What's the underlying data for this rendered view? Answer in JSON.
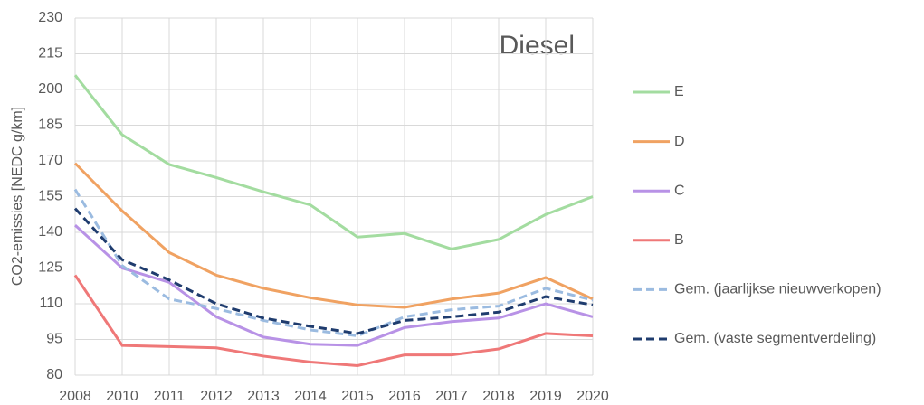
{
  "chart_data": {
    "type": "line",
    "title": "Diesel",
    "y_label": "CO2-emissies [NEDC g/km]",
    "categories": [
      "2008",
      "2010",
      "2011",
      "2012",
      "2013",
      "2014",
      "2015",
      "2016",
      "2017",
      "2018",
      "2019",
      "2020"
    ],
    "ylim": [
      80,
      230
    ],
    "yticks": [
      80,
      95,
      110,
      125,
      140,
      155,
      170,
      185,
      200,
      215,
      230
    ],
    "grid": true,
    "legend": "right",
    "series": [
      {
        "name": "E",
        "color": "#a3dca0",
        "dashed": false,
        "values": [
          206,
          181,
          168.5,
          163,
          157,
          151.5,
          138,
          139.5,
          133,
          137,
          147.5,
          155
        ]
      },
      {
        "name": "D",
        "color": "#f0a262",
        "dashed": false,
        "values": [
          169,
          149,
          131.5,
          122,
          116.5,
          112.5,
          109.5,
          108.5,
          112,
          114.5,
          121,
          112
        ]
      },
      {
        "name": "C",
        "color": "#b892e6",
        "dashed": false,
        "values": [
          143,
          125,
          119,
          104.5,
          96,
          93,
          92.5,
          100,
          102.5,
          104,
          110,
          104.5
        ]
      },
      {
        "name": "B",
        "color": "#ef7878",
        "dashed": false,
        "values": [
          122,
          92.5,
          92,
          91.5,
          88,
          85.5,
          84,
          88.5,
          88.5,
          91,
          97.5,
          96.5
        ]
      },
      {
        "name": "Gem. (jaarlijkse nieuwverkopen)",
        "color": "#9bbbe0",
        "dashed": true,
        "values": [
          158,
          126,
          112,
          108,
          103,
          99,
          96.5,
          104.5,
          107.5,
          109,
          116.5,
          111.5
        ]
      },
      {
        "name": "Gem. (vaste segmentverdeling)",
        "color": "#1f3c6e",
        "dashed": true,
        "values": [
          150,
          128.5,
          120,
          110,
          104,
          100.5,
          97.5,
          103,
          104.5,
          106.5,
          113,
          109.5
        ]
      }
    ]
  }
}
